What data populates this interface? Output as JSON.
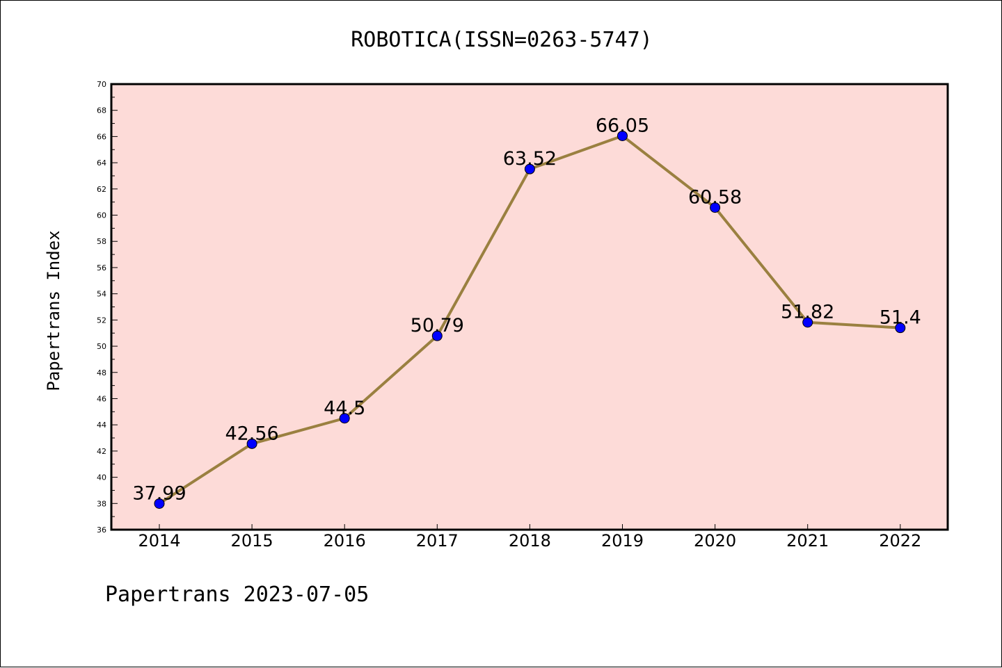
{
  "chart_data": {
    "type": "line",
    "title": "ROBOTICA(ISSN=0263-5747)",
    "xlabel": "",
    "ylabel": "Papertrans Index",
    "categories": [
      "2014",
      "2015",
      "2016",
      "2017",
      "2018",
      "2019",
      "2020",
      "2021",
      "2022"
    ],
    "series": [
      {
        "values": [
          37.99,
          42.56,
          44.5,
          50.79,
          63.52,
          66.05,
          60.58,
          51.82,
          51.4
        ],
        "labels": [
          "37.99",
          "42.56",
          "44.5",
          "50.79",
          "63.52",
          "66.05",
          "60.58",
          "51.82",
          "51.4"
        ],
        "line_color": "#9a8040",
        "marker_color": "#0000ff"
      }
    ],
    "ylim": [
      36,
      70
    ],
    "yticks": [
      "36",
      "38",
      "40",
      "42",
      "44",
      "46",
      "48",
      "50",
      "52",
      "54",
      "56",
      "58",
      "60",
      "62",
      "64",
      "66",
      "68",
      "70"
    ],
    "plot_background": "#fddbd8",
    "grid": false
  },
  "footer": "Papertrans 2023-07-05"
}
